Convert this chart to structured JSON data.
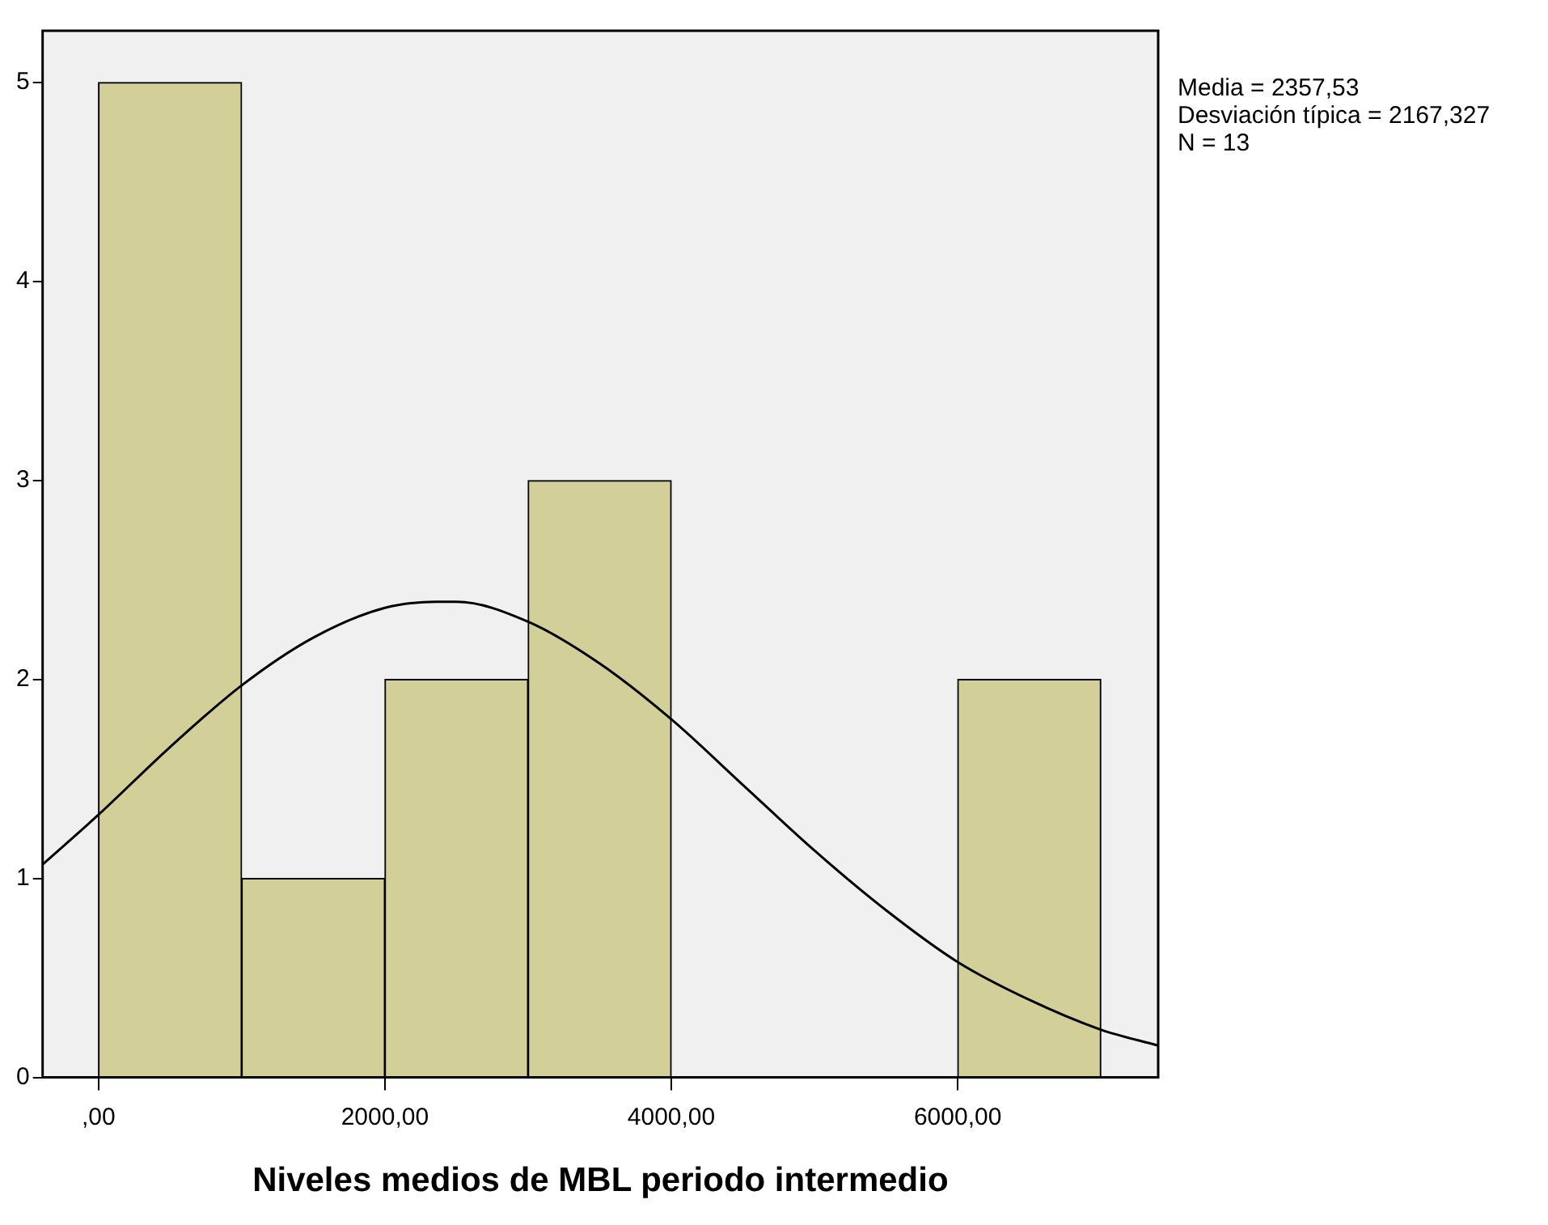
{
  "chart_data": {
    "type": "histogram",
    "xlabel": "Niveles medios de MBL periodo intermedio",
    "bins": [
      0,
      1000,
      2000,
      3000,
      4000,
      5000,
      6000,
      7000
    ],
    "values": [
      5,
      1,
      2,
      3,
      0,
      0,
      2
    ],
    "color": "#d3cf99",
    "xlim": [
      -390,
      7400
    ],
    "xticks": [
      {
        "value": 0,
        "label": ",00"
      },
      {
        "value": 2000,
        "label": "2000,00"
      },
      {
        "value": 4000,
        "label": "4000,00"
      },
      {
        "value": 6000,
        "label": "6000,00"
      }
    ],
    "ylim": [
      0,
      5.26
    ],
    "yticks": [
      0,
      1,
      2,
      3,
      4,
      5
    ],
    "annotations": [
      "Media = 2357,53",
      "Desviación típica = 2167,327",
      "N = 13"
    ],
    "series": [
      {
        "type": "line",
        "color": "#000000",
        "x": [
          -390,
          0,
          500,
          1000,
          1500,
          2000,
          2358,
          2500,
          3000,
          3500,
          4000,
          4500,
          5000,
          5500,
          6000,
          6500,
          7000,
          7400
        ],
        "values": [
          1.07,
          1.32,
          1.66,
          1.97,
          2.21,
          2.36,
          2.39,
          2.39,
          2.29,
          2.08,
          1.8,
          1.47,
          1.14,
          0.84,
          0.58,
          0.39,
          0.24,
          0.16
        ]
      }
    ]
  }
}
